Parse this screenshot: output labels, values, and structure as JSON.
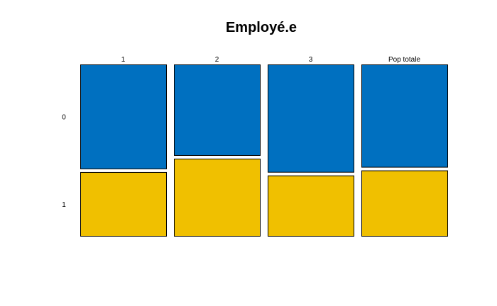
{
  "chart_data": {
    "type": "mosaic",
    "title": "Employé.e",
    "categories": [
      "1",
      "2",
      "3",
      "Pop totale"
    ],
    "row_categories": [
      "0",
      "1"
    ],
    "series": [
      {
        "row": "0",
        "color": "#0070C0",
        "values": [
          0.62,
          0.54,
          0.64,
          0.61
        ]
      },
      {
        "row": "1",
        "color": "#F0C000",
        "values": [
          0.38,
          0.46,
          0.36,
          0.39
        ]
      }
    ],
    "ylim": [
      0,
      1
    ],
    "grid": false,
    "legend": "none"
  }
}
